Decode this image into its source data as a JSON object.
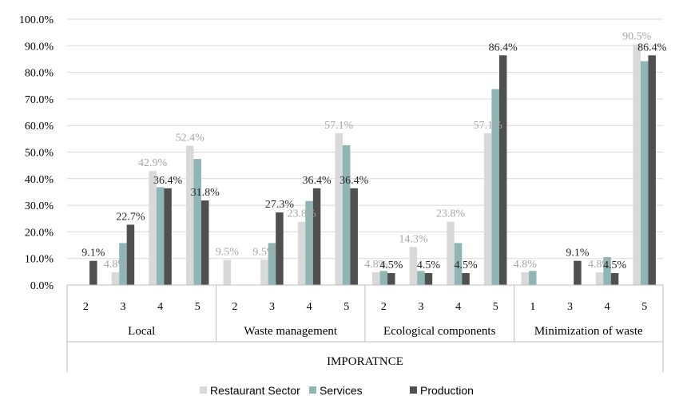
{
  "chart_data": {
    "type": "bar",
    "xlabel": "IMPORATNCE",
    "ylim": [
      0,
      100
    ],
    "y_ticks": [
      "0.0%",
      "10.0%",
      "20.0%",
      "30.0%",
      "40.0%",
      "50.0%",
      "60.0%",
      "70.0%",
      "80.0%",
      "90.0%",
      "100.0%"
    ],
    "grid": true,
    "legend_position": "bottom",
    "groups": [
      {
        "name": "Local",
        "categories": [
          "2",
          "3",
          "4",
          "5"
        ]
      },
      {
        "name": "Waste management",
        "categories": [
          "2",
          "3",
          "4",
          "5"
        ]
      },
      {
        "name": "Ecological components",
        "categories": [
          "2",
          "3",
          "4",
          "5"
        ]
      },
      {
        "name": "Minimization of waste",
        "categories": [
          "1",
          "3",
          "4",
          "5"
        ]
      }
    ],
    "series": [
      {
        "name": "Restaurant Sector",
        "color": "#d9d9d9",
        "label_color": "#a6a6a6",
        "values": [
          0,
          4.8,
          42.9,
          52.4,
          9.5,
          9.5,
          23.8,
          57.1,
          4.8,
          14.3,
          23.8,
          57.1,
          4.8,
          0,
          4.8,
          90.5
        ],
        "labels": [
          "",
          "4.8%",
          "42.9%",
          "52.4%",
          "9.5%",
          "9.5%",
          "23.8%",
          "57.1%",
          "4.8%",
          "14.3%",
          "23.8%",
          "57.1%",
          "4.8%",
          "",
          "4.8%",
          "90.5%"
        ]
      },
      {
        "name": "Services",
        "color": "#8fb5b5",
        "label_color": "#8fb5b5",
        "values": [
          0,
          15.8,
          36.8,
          47.4,
          0,
          15.8,
          31.6,
          52.6,
          5.3,
          5.3,
          15.8,
          73.7,
          5.3,
          0,
          10.5,
          84.2
        ],
        "labels": []
      },
      {
        "name": "Production",
        "color": "#505050",
        "label_color": "#262626",
        "values": [
          9.1,
          22.7,
          36.4,
          31.8,
          0,
          27.3,
          36.4,
          36.4,
          4.5,
          4.5,
          4.5,
          86.4,
          0,
          9.1,
          4.5,
          86.4
        ],
        "labels": [
          "9.1%",
          "22.7%",
          "36.4%",
          "31.8%",
          "",
          "27.3%",
          "36.4%",
          "36.4%",
          "4.5%",
          "4.5%",
          "4.5%",
          "86.4%",
          "",
          "9.1%",
          "4.5%",
          "86.4%"
        ]
      }
    ]
  }
}
